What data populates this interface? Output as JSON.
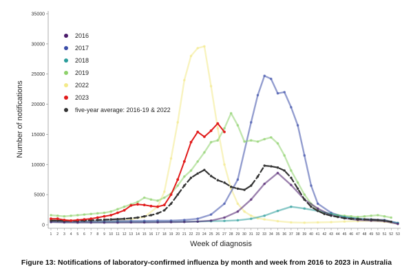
{
  "figure": {
    "caption": "Figure 13: Notifications of laboratory-confirmed influenza by month and week from 2016 to 2023 in Australia",
    "subcaption": ""
  },
  "chart_data": {
    "type": "line",
    "title": "",
    "xlabel": "Week of diagnosis",
    "ylabel": "Number of notifications",
    "x_ticks": [
      1,
      2,
      3,
      4,
      5,
      6,
      7,
      8,
      9,
      10,
      11,
      12,
      13,
      14,
      15,
      16,
      17,
      18,
      19,
      20,
      21,
      22,
      23,
      24,
      25,
      26,
      27,
      28,
      29,
      30,
      31,
      32,
      33,
      34,
      35,
      36,
      37,
      38,
      39,
      40,
      41,
      42,
      43,
      44,
      45,
      46,
      47,
      48,
      49,
      50,
      51,
      52,
      53
    ],
    "ylim": [
      0,
      35000
    ],
    "y_ticks": [
      0,
      5000,
      10000,
      15000,
      20000,
      25000,
      30000,
      35000
    ],
    "xlim": [
      1,
      53
    ],
    "grid": false,
    "legend_position": "top-left",
    "series": [
      {
        "name": "2016",
        "color": "#4b1b6b",
        "x": [
          1,
          3,
          5,
          7,
          9,
          11,
          13,
          15,
          17,
          19,
          21,
          23,
          25,
          27,
          29,
          31,
          33,
          35,
          37,
          39,
          41,
          43,
          45,
          47,
          49,
          51,
          53
        ],
        "values": [
          450,
          400,
          380,
          380,
          380,
          380,
          400,
          400,
          420,
          450,
          480,
          550,
          700,
          1200,
          2200,
          4200,
          6800,
          8600,
          6600,
          4200,
          2700,
          1600,
          1100,
          800,
          700,
          600,
          150
        ]
      },
      {
        "name": "2017",
        "color": "#3b4da8",
        "x": [
          1,
          3,
          5,
          7,
          9,
          11,
          13,
          15,
          17,
          19,
          21,
          23,
          25,
          27,
          29,
          31,
          32,
          33,
          34,
          35,
          36,
          37,
          38,
          39,
          40,
          41,
          43,
          45,
          47,
          49,
          51,
          53
        ],
        "values": [
          700,
          650,
          600,
          600,
          650,
          650,
          650,
          650,
          700,
          700,
          800,
          1000,
          1700,
          3500,
          7500,
          17000,
          21500,
          24700,
          24200,
          21800,
          22000,
          19500,
          16500,
          11500,
          6500,
          3500,
          2000,
          1300,
          1000,
          900,
          800,
          300
        ]
      },
      {
        "name": "2018",
        "color": "#2a9d9b",
        "x": [
          1,
          3,
          5,
          7,
          9,
          11,
          13,
          15,
          17,
          19,
          21,
          23,
          25,
          27,
          29,
          31,
          33,
          35,
          37,
          39,
          41,
          43,
          45,
          47,
          49,
          51,
          53
        ],
        "values": [
          500,
          450,
          420,
          420,
          430,
          440,
          450,
          460,
          470,
          480,
          500,
          550,
          600,
          650,
          750,
          1000,
          1500,
          2300,
          3000,
          2700,
          2300,
          1800,
          1300,
          1000,
          800,
          700,
          300
        ]
      },
      {
        "name": "2019",
        "color": "#8ed16b",
        "x": [
          1,
          2,
          3,
          4,
          5,
          6,
          7,
          8,
          9,
          10,
          11,
          12,
          13,
          14,
          15,
          16,
          17,
          18,
          19,
          20,
          21,
          22,
          23,
          24,
          25,
          26,
          27,
          28,
          29,
          30,
          31,
          32,
          33,
          34,
          35,
          36,
          37,
          38,
          39,
          40,
          41,
          42,
          43,
          44,
          45,
          46,
          47,
          48,
          49,
          50,
          51,
          52
        ],
        "values": [
          1600,
          1500,
          1400,
          1500,
          1600,
          1700,
          1800,
          1900,
          2000,
          2200,
          2600,
          3000,
          3400,
          3800,
          4500,
          4200,
          4000,
          4500,
          5200,
          6500,
          8000,
          9000,
          10500,
          12000,
          13700,
          14000,
          16000,
          18500,
          16500,
          13800,
          14000,
          13800,
          14200,
          14500,
          13500,
          11500,
          9000,
          7000,
          5000,
          3500,
          2500,
          2000,
          1800,
          1600,
          1500,
          1400,
          1300,
          1400,
          1500,
          1600,
          1400,
          1200
        ]
      },
      {
        "name": "2022",
        "color": "#f3ea8a",
        "x": [
          1,
          3,
          5,
          7,
          9,
          11,
          13,
          15,
          17,
          18,
          19,
          20,
          21,
          22,
          23,
          24,
          25,
          26,
          27,
          28,
          29,
          30,
          31,
          32,
          33,
          35,
          37,
          39,
          41,
          43,
          45,
          47,
          49,
          51,
          53
        ],
        "values": [
          900,
          800,
          700,
          700,
          700,
          750,
          900,
          1300,
          3000,
          5500,
          11000,
          17000,
          24000,
          28000,
          29300,
          29600,
          23000,
          16000,
          10000,
          6000,
          3500,
          2200,
          1500,
          1100,
          900,
          600,
          400,
          350,
          400,
          450,
          550,
          600,
          650,
          500,
          200
        ]
      },
      {
        "name": "2023",
        "color": "#e11b1b",
        "x": [
          1,
          2,
          3,
          4,
          5,
          6,
          7,
          8,
          9,
          10,
          11,
          12,
          13,
          14,
          15,
          16,
          17,
          18,
          19,
          20,
          21,
          22,
          23,
          24,
          25,
          26,
          27
        ],
        "values": [
          1000,
          1000,
          800,
          700,
          800,
          900,
          1000,
          1200,
          1400,
          1600,
          2000,
          2400,
          3200,
          3400,
          3300,
          3100,
          3000,
          3300,
          5000,
          7500,
          10500,
          13700,
          15400,
          14600,
          15600,
          16800,
          15400
        ]
      },
      {
        "name": "five-year average: 2016-19 & 2022",
        "color": "#333333",
        "x": [
          1,
          2,
          3,
          4,
          5,
          6,
          7,
          8,
          9,
          10,
          11,
          12,
          13,
          14,
          15,
          16,
          17,
          18,
          19,
          20,
          21,
          22,
          23,
          24,
          25,
          26,
          27,
          28,
          29,
          30,
          31,
          32,
          33,
          34,
          35,
          36,
          37,
          38,
          39,
          40,
          41,
          42,
          43,
          44,
          45,
          46,
          47,
          48,
          49,
          50,
          51,
          52
        ],
        "values": [
          700,
          700,
          650,
          650,
          650,
          700,
          750,
          800,
          850,
          900,
          950,
          1000,
          1100,
          1200,
          1400,
          1600,
          1900,
          2400,
          3500,
          5000,
          6500,
          7800,
          8500,
          9100,
          8100,
          7400,
          7000,
          6300,
          6000,
          5800,
          6500,
          8000,
          9800,
          9700,
          9500,
          9000,
          7800,
          6000,
          4200,
          3000,
          2300,
          1800,
          1500,
          1300,
          1100,
          1000,
          950,
          900,
          850,
          800,
          700,
          500
        ]
      }
    ]
  }
}
